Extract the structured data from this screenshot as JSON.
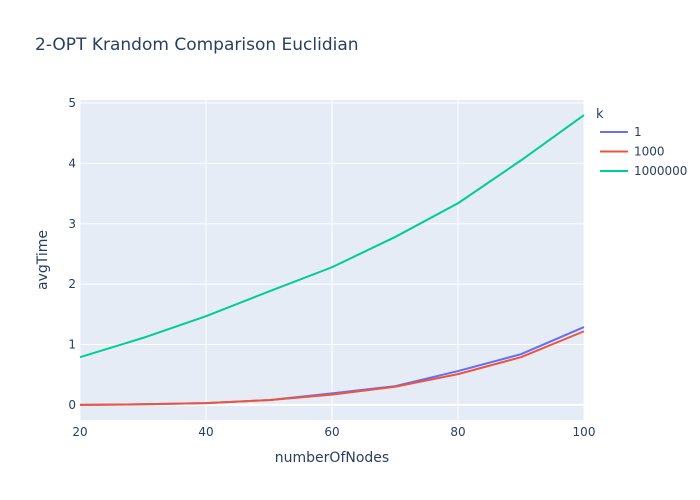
{
  "chart_data": {
    "type": "line",
    "title": "2-OPT Krandom Comparison Euclidian",
    "xlabel": "numberOfNodes",
    "ylabel": "avgTime",
    "xlim": [
      20,
      100
    ],
    "ylim": [
      -0.25,
      5.05
    ],
    "x_ticks": [
      20,
      40,
      60,
      80,
      100
    ],
    "y_ticks": [
      0,
      1,
      2,
      3,
      4,
      5
    ],
    "grid": true,
    "legend_title": "k",
    "legend_position": "right",
    "background": "#e5ecf6",
    "x": [
      20,
      30,
      40,
      50,
      60,
      70,
      80,
      90,
      100
    ],
    "series": [
      {
        "name": "1",
        "color": "#636efa",
        "values": [
          0.0,
          0.01,
          0.03,
          0.08,
          0.19,
          0.31,
          0.56,
          0.84,
          1.29
        ]
      },
      {
        "name": "1000",
        "color": "#ef553b",
        "values": [
          0.0,
          0.01,
          0.03,
          0.08,
          0.17,
          0.3,
          0.51,
          0.79,
          1.22
        ]
      },
      {
        "name": "1000000",
        "color": "#00cc96",
        "values": [
          0.79,
          1.11,
          1.47,
          1.88,
          2.28,
          2.78,
          3.34,
          4.05,
          4.8
        ]
      }
    ]
  }
}
